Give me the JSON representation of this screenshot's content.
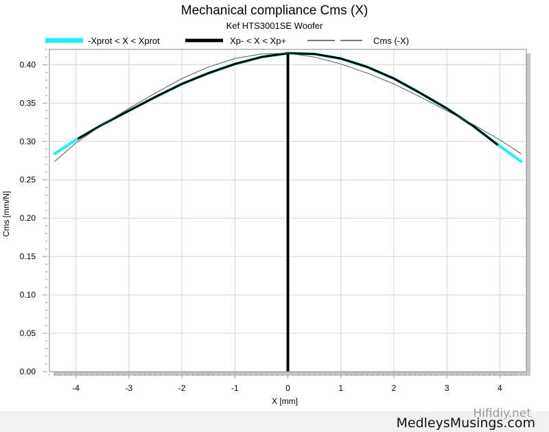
{
  "chart_data": {
    "type": "line",
    "title": "Mechanical compliance Cms (X)",
    "subtitle": "Kef HTS3001SE Woofer",
    "xlabel": "X [mm]",
    "ylabel": "Cms [mm/N]",
    "xlim": [
      -4.5,
      4.5
    ],
    "ylim": [
      0,
      0.42
    ],
    "xticks": [
      "-4",
      "-3",
      "-2",
      "-1",
      "0",
      "1",
      "2",
      "3",
      "4"
    ],
    "yticks": [
      "0.00",
      "0.05",
      "0.10",
      "0.15",
      "0.20",
      "0.25",
      "0.30",
      "0.35",
      "0.40"
    ],
    "grid": true,
    "legend_position": "top",
    "vertical_marker_x": 0,
    "series": [
      {
        "name": "-Xprot < X < Xprot",
        "color": "#22eeee",
        "x": [
          -4.4,
          -4.0,
          -3.5,
          -3.0,
          -2.5,
          -2.0,
          -1.5,
          -1.0,
          -0.5,
          0.0,
          0.5,
          1.0,
          1.5,
          2.0,
          2.5,
          3.0,
          3.5,
          4.0,
          4.4
        ],
        "y": [
          0.284,
          0.302,
          0.322,
          0.34,
          0.358,
          0.375,
          0.389,
          0.401,
          0.41,
          0.415,
          0.414,
          0.408,
          0.397,
          0.382,
          0.363,
          0.343,
          0.32,
          0.294,
          0.274
        ]
      },
      {
        "name": "Xp- < X < Xp+",
        "color": "#000000",
        "x": [
          -3.95,
          -3.5,
          -3.0,
          -2.5,
          -2.0,
          -1.5,
          -1.0,
          -0.5,
          0.0,
          0.5,
          1.0,
          1.5,
          2.0,
          2.5,
          3.0,
          3.5,
          3.95
        ],
        "y": [
          0.304,
          0.322,
          0.34,
          0.358,
          0.375,
          0.389,
          0.401,
          0.41,
          0.415,
          0.414,
          0.408,
          0.397,
          0.382,
          0.363,
          0.343,
          0.32,
          0.296
        ]
      },
      {
        "name": "Cms (-X)",
        "color": "#555555",
        "x": [
          -4.4,
          -4.0,
          -3.5,
          -3.0,
          -2.5,
          -2.0,
          -1.5,
          -1.0,
          -0.5,
          0.0,
          0.5,
          1.0,
          1.5,
          2.0,
          2.5,
          3.0,
          3.5,
          4.0,
          4.4
        ],
        "y": [
          0.274,
          0.298,
          0.322,
          0.343,
          0.363,
          0.382,
          0.397,
          0.408,
          0.414,
          0.415,
          0.41,
          0.401,
          0.389,
          0.375,
          0.358,
          0.34,
          0.322,
          0.302,
          0.284
        ]
      }
    ]
  },
  "watermark": "Hifidiy.net",
  "brand": "MedleysMusings.com"
}
